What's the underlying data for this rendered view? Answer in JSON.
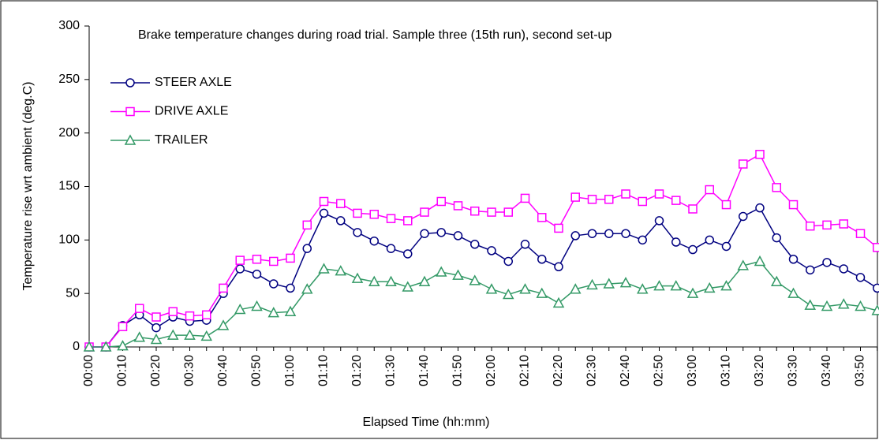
{
  "chart_data": {
    "type": "line",
    "title": "Brake temperature changes during road trial. Sample three (15th run), second set-up",
    "xlabel": "Elapsed Time (hh:mm)",
    "ylabel": "Temperature rise wrt ambient (deg.C)",
    "categories": [
      "00:00",
      null,
      "00:10",
      null,
      "00:20",
      null,
      "00:30",
      null,
      "00:40",
      null,
      "00:50",
      null,
      "01:00",
      null,
      "01:10",
      null,
      "01:20",
      null,
      "01:30",
      null,
      "01:40",
      null,
      "01:50",
      null,
      "02:00",
      null,
      "02:10",
      null,
      "02:20",
      null,
      "02:30",
      null,
      "02:40",
      null,
      "02:50",
      null,
      "03:00",
      null,
      "03:10",
      null,
      "03:20",
      null,
      "03:30",
      null,
      "03:40",
      null,
      "03:50",
      null
    ],
    "series": [
      {
        "name": "STEER AXLE",
        "color": "#000080",
        "marker": "circle",
        "values": [
          0,
          0,
          20,
          30,
          18,
          28,
          24,
          25,
          50,
          73,
          68,
          59,
          55,
          92,
          125,
          118,
          107,
          99,
          92,
          87,
          106,
          107,
          104,
          96,
          90,
          80,
          96,
          82,
          75,
          104,
          106,
          106,
          106,
          100,
          118,
          98,
          91,
          100,
          94,
          122,
          130,
          102,
          82,
          72,
          79,
          73,
          65,
          55
        ]
      },
      {
        "name": "DRIVE AXLE",
        "color": "#ff00ff",
        "marker": "square",
        "values": [
          0,
          0,
          19,
          36,
          28,
          33,
          29,
          30,
          55,
          81,
          82,
          80,
          83,
          114,
          136,
          134,
          125,
          124,
          120,
          118,
          126,
          136,
          132,
          127,
          126,
          126,
          139,
          121,
          111,
          140,
          138,
          138,
          143,
          136,
          143,
          137,
          129,
          147,
          133,
          171,
          180,
          149,
          133,
          113,
          114,
          115,
          106,
          93
        ]
      },
      {
        "name": "TRAILER",
        "color": "#339966",
        "marker": "triangle",
        "values": [
          0,
          0,
          1,
          9,
          7,
          11,
          11,
          10,
          20,
          35,
          38,
          32,
          33,
          54,
          73,
          71,
          64,
          61,
          61,
          56,
          61,
          70,
          67,
          62,
          54,
          49,
          54,
          50,
          41,
          54,
          58,
          59,
          60,
          54,
          57,
          57,
          50,
          55,
          57,
          76,
          80,
          61,
          50,
          39,
          38,
          40,
          38,
          34
        ]
      }
    ],
    "ylim": [
      0,
      300
    ],
    "yticks": [
      0,
      50,
      100,
      150,
      200,
      250,
      300
    ]
  }
}
